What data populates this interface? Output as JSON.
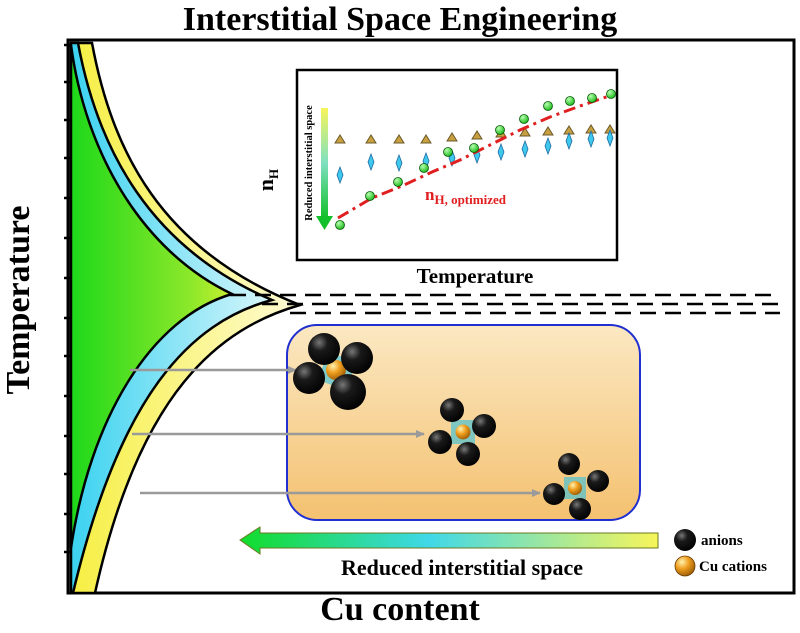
{
  "title": "Interstitial Space Engineering",
  "axes": {
    "x_label": "Cu content",
    "y_label": "Temperature"
  },
  "inset": {
    "x_label": "Temperature",
    "y_label_main": "n",
    "y_label_sub": "H",
    "arrow_label": "Reduced interstitial space",
    "optimized_main": "n",
    "optimized_sub": "H, optimized"
  },
  "bottom_arrow_label": "Reduced interstitial space",
  "legend": {
    "anions": "anions",
    "cations": "Cu cations"
  },
  "colors": {
    "green_region": "#22d81c",
    "cyan_band": "#7fe8f5",
    "yellow_band": "#fdf59a",
    "inset_optimized_line": "#e02020",
    "panel_border": "#1f2fd0",
    "panel_fill": "#f6c777"
  }
}
